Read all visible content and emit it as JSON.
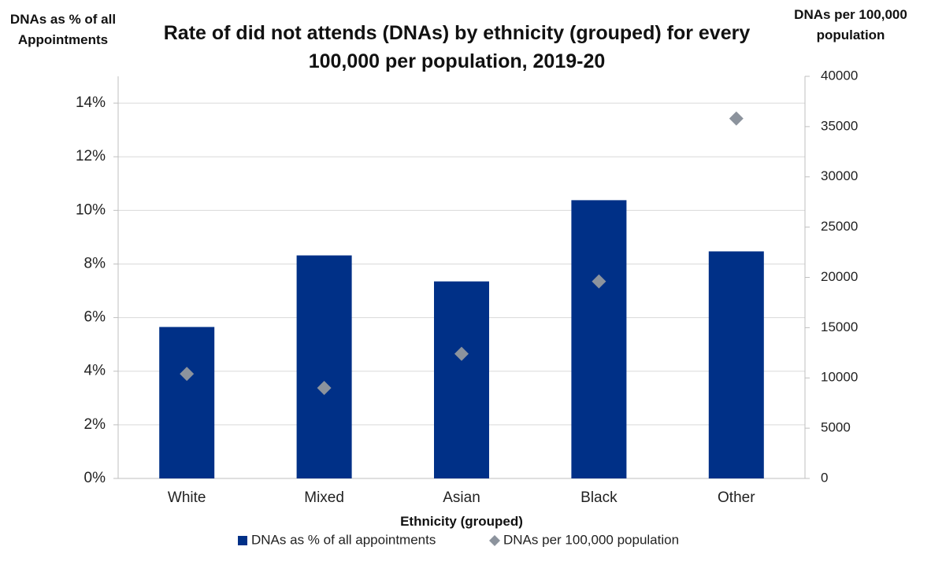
{
  "chart_data": {
    "type": "bar",
    "title": "Rate of did not attends (DNAs) by ethnicity (grouped) for every 100,000 per population, 2019-20",
    "y_label": "DNAs as % of all Appointments",
    "y2_label": "DNAs per 100,000 population",
    "x_label": "Ethnicity (grouped)",
    "categories": [
      "White",
      "Mixed",
      "Asian",
      "Black",
      "Other"
    ],
    "series": [
      {
        "name": "DNAs as % of all appointments",
        "type": "bar",
        "color": "#003087",
        "values": [
          5.65,
          8.32,
          7.35,
          10.38,
          8.47
        ]
      },
      {
        "name": "DNAs per 100,000 population",
        "type": "scatter",
        "axis": "y2",
        "color": "#8c939d",
        "values": [
          10400,
          9000,
          12400,
          19600,
          35800
        ]
      }
    ],
    "ylim": [
      0,
      15
    ],
    "yticks": [
      {
        "value": 0,
        "label": "0%"
      },
      {
        "value": 2,
        "label": "2%"
      },
      {
        "value": 4,
        "label": "4%"
      },
      {
        "value": 6,
        "label": "6%"
      },
      {
        "value": 8,
        "label": "8%"
      },
      {
        "value": 10,
        "label": "10%"
      },
      {
        "value": 12,
        "label": "12%"
      },
      {
        "value": 14,
        "label": "14%"
      }
    ],
    "y2lim": [
      0,
      40000
    ],
    "y2ticks": [
      0,
      5000,
      10000,
      15000,
      20000,
      25000,
      30000,
      35000,
      40000
    ],
    "grid": true
  }
}
